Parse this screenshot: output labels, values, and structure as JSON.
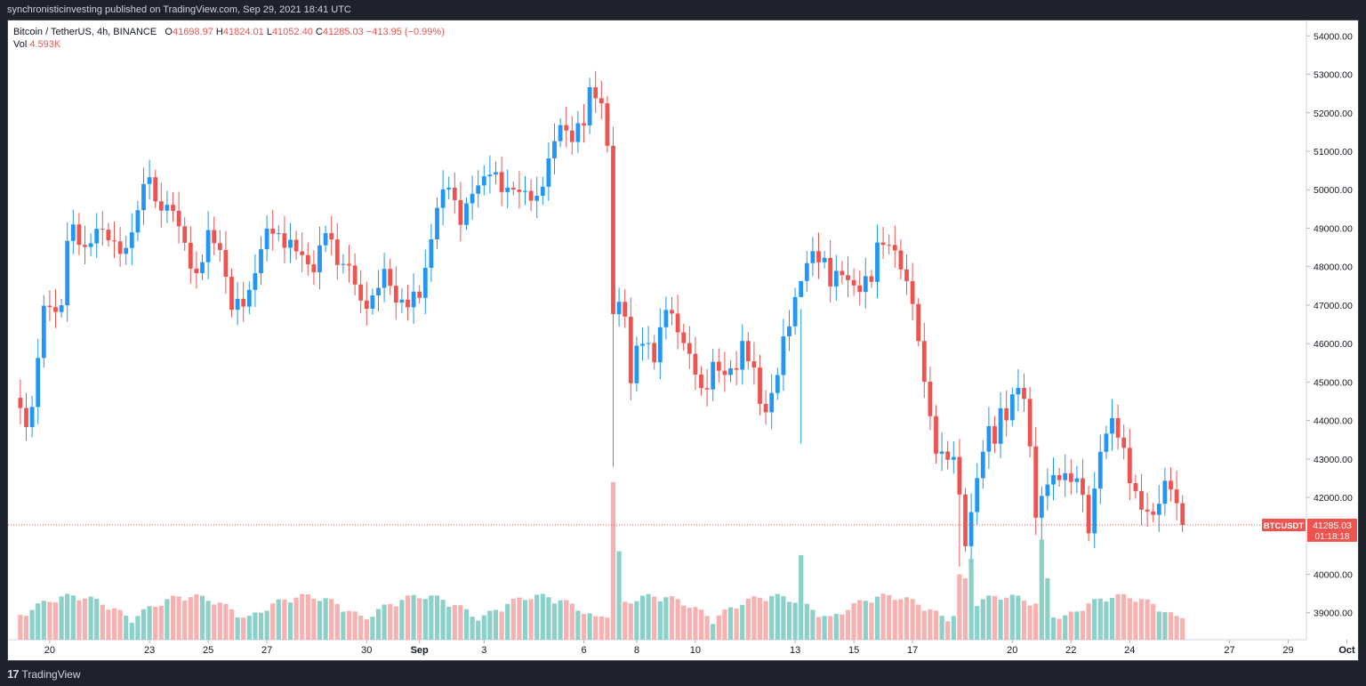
{
  "header": {
    "text": "synchronisticinvesting published on TradingView.com, Sep 29, 2021 18:41 UTC"
  },
  "legend": {
    "symbol": "Bitcoin / TetherUS, 4h, BINANCE",
    "o_label": "O",
    "o_value": "41698.97",
    "h_label": "H",
    "h_value": "41824.01",
    "l_label": "L",
    "l_value": "41052.40",
    "c_label": "C",
    "c_value": "41285.03",
    "change": "−413.95 (−0.99%)",
    "vol_label": "Vol",
    "vol_value": "4.593K"
  },
  "price_tag": {
    "symbol": "BTCUSDT",
    "price": "41285.03",
    "countdown": "01:18:18"
  },
  "footer": {
    "brand": "TradingView"
  },
  "colors": {
    "up": "#2196f3",
    "down": "#ef5350",
    "vol_up": "#80cbc4",
    "vol_down": "#f7a8a8",
    "axis_text": "#131722",
    "tag": "#ef5350"
  },
  "chart_data": {
    "type": "candlestick",
    "interval": "4h",
    "y_axis": {
      "min": 38300,
      "max": 54400,
      "ticks": [
        39000,
        40000,
        41000,
        42000,
        43000,
        44000,
        45000,
        46000,
        47000,
        48000,
        49000,
        50000,
        51000,
        52000,
        53000,
        54000
      ],
      "tick_labels": [
        "39000.00",
        "40000.00",
        "41000.00",
        "42000.00",
        "43000.00",
        "44000.00",
        "45000.00",
        "46000.00",
        "47000.00",
        "48000.00",
        "49000.00",
        "50000.00",
        "51000.00",
        "52000.00",
        "53000.00",
        "54000.00"
      ],
      "position": "right"
    },
    "x_axis": {
      "labels": [
        "20",
        "23",
        "25",
        "27",
        "30",
        "Sep",
        "3",
        "6",
        "8",
        "10",
        "13",
        "15",
        "17",
        "20",
        "22",
        "24",
        "27",
        "29",
        "Oct"
      ],
      "label_bars": [
        6,
        23,
        33,
        43,
        60,
        69,
        80,
        97,
        106,
        116,
        133,
        143,
        153,
        170,
        180,
        190,
        207,
        217,
        227
      ]
    },
    "last_price": 41285.03,
    "waypoints": [
      [
        0,
        44500
      ],
      [
        2,
        44000
      ],
      [
        3,
        44300
      ],
      [
        4,
        45700
      ],
      [
        5,
        46800
      ],
      [
        6,
        47000
      ],
      [
        7,
        46900
      ],
      [
        8,
        47000
      ],
      [
        9,
        48700
      ],
      [
        10,
        48900
      ],
      [
        12,
        48500
      ],
      [
        14,
        48900
      ],
      [
        16,
        48800
      ],
      [
        19,
        48300
      ],
      [
        21,
        49500
      ],
      [
        22,
        50200
      ],
      [
        23,
        50400
      ],
      [
        24,
        49500
      ],
      [
        27,
        49600
      ],
      [
        28,
        49000
      ],
      [
        30,
        48000
      ],
      [
        31,
        47800
      ],
      [
        33,
        48800
      ],
      [
        35,
        48400
      ],
      [
        36,
        47800
      ],
      [
        37,
        47000
      ],
      [
        39,
        47000
      ],
      [
        40,
        47300
      ],
      [
        41,
        48000
      ],
      [
        43,
        48900
      ],
      [
        45,
        48800
      ],
      [
        47,
        48600
      ],
      [
        49,
        48200
      ],
      [
        51,
        48000
      ],
      [
        53,
        48900
      ],
      [
        55,
        48200
      ],
      [
        57,
        48000
      ],
      [
        59,
        47000
      ],
      [
        61,
        47200
      ],
      [
        63,
        47800
      ],
      [
        65,
        47200
      ],
      [
        67,
        47000
      ],
      [
        69,
        47300
      ],
      [
        70,
        48000
      ],
      [
        72,
        49500
      ],
      [
        74,
        50200
      ],
      [
        76,
        49200
      ],
      [
        77,
        49500
      ],
      [
        79,
        50200
      ],
      [
        81,
        50500
      ],
      [
        83,
        50000
      ],
      [
        85,
        50100
      ],
      [
        87,
        49800
      ],
      [
        89,
        49800
      ],
      [
        91,
        50700
      ],
      [
        93,
        51700
      ],
      [
        95,
        51400
      ],
      [
        97,
        51700
      ],
      [
        98,
        52600
      ],
      [
        99,
        52500
      ],
      [
        100,
        52300
      ],
      [
        101,
        51000
      ],
      [
        102,
        46800
      ],
      [
        103,
        47000
      ],
      [
        104,
        46900
      ],
      [
        105,
        44900
      ],
      [
        106,
        45900
      ],
      [
        108,
        46000
      ],
      [
        109,
        45700
      ],
      [
        111,
        46900
      ],
      [
        113,
        46400
      ],
      [
        114,
        46100
      ],
      [
        116,
        45200
      ],
      [
        117,
        44700
      ],
      [
        118,
        45000
      ],
      [
        119,
        45500
      ],
      [
        121,
        45100
      ],
      [
        123,
        45500
      ],
      [
        124,
        46000
      ],
      [
        126,
        45200
      ],
      [
        127,
        44500
      ],
      [
        128,
        44300
      ],
      [
        129,
        44700
      ],
      [
        130,
        45200
      ],
      [
        131,
        46000
      ],
      [
        132,
        46600
      ],
      [
        133,
        47200
      ],
      [
        134,
        47700
      ],
      [
        136,
        48300
      ],
      [
        138,
        48200
      ],
      [
        139,
        47600
      ],
      [
        141,
        47800
      ],
      [
        142,
        47700
      ],
      [
        144,
        47400
      ],
      [
        146,
        47700
      ],
      [
        147,
        48600
      ],
      [
        148,
        48700
      ],
      [
        150,
        48300
      ],
      [
        151,
        48000
      ],
      [
        152,
        47600
      ],
      [
        153,
        47200
      ],
      [
        154,
        45900
      ],
      [
        155,
        45000
      ],
      [
        156,
        44100
      ],
      [
        157,
        43200
      ],
      [
        158,
        43300
      ],
      [
        159,
        42800
      ],
      [
        160,
        43100
      ],
      [
        161,
        42000
      ],
      [
        162,
        40900
      ],
      [
        163,
        41600
      ],
      [
        164,
        42400
      ],
      [
        165,
        43200
      ],
      [
        166,
        43800
      ],
      [
        167,
        43600
      ],
      [
        168,
        44200
      ],
      [
        169,
        44000
      ],
      [
        170,
        44600
      ],
      [
        171,
        44900
      ],
      [
        172,
        44700
      ],
      [
        173,
        43200
      ],
      [
        174,
        41500
      ],
      [
        175,
        41900
      ],
      [
        176,
        42500
      ],
      [
        177,
        42600
      ],
      [
        178,
        42400
      ],
      [
        179,
        42600
      ],
      [
        180,
        42300
      ],
      [
        181,
        42700
      ],
      [
        182,
        42000
      ],
      [
        183,
        41100
      ],
      [
        184,
        42100
      ],
      [
        185,
        43200
      ],
      [
        186,
        43800
      ],
      [
        187,
        44000
      ],
      [
        188,
        43600
      ],
      [
        189,
        43100
      ],
      [
        190,
        42500
      ],
      [
        191,
        42200
      ],
      [
        192,
        41700
      ],
      [
        193,
        41600
      ],
      [
        194,
        41400
      ],
      [
        195,
        42000
      ],
      [
        196,
        42400
      ],
      [
        197,
        42300
      ],
      [
        198,
        41700
      ],
      [
        199,
        41285
      ]
    ],
    "volume_spikes": [
      [
        102,
        42400
      ],
      [
        103,
        40600
      ],
      [
        134,
        40500
      ],
      [
        161,
        40000
      ],
      [
        162,
        39900
      ],
      [
        163,
        40400
      ],
      [
        175,
        40900
      ],
      [
        176,
        39900
      ]
    ]
  }
}
